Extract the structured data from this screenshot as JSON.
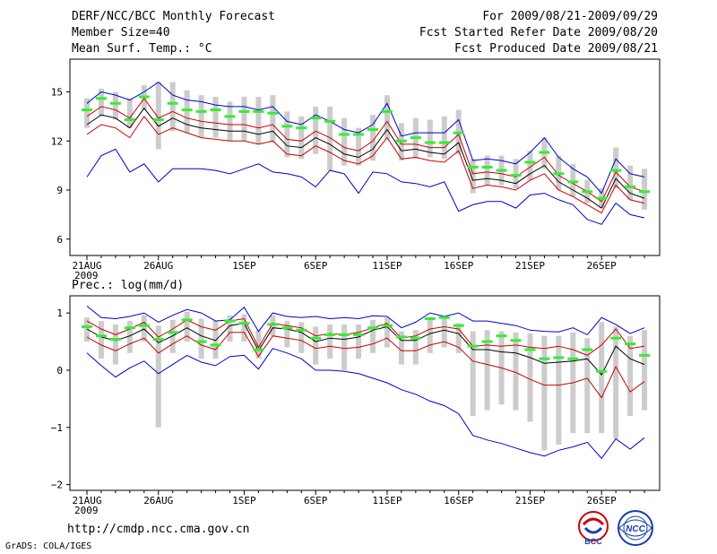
{
  "header": {
    "title": "DERF/NCC/BCC Monthly Forecast",
    "member_size": "Member Size=40",
    "variable": "Mean Surf. Temp.: °C",
    "period": "For 2009/08/21-2009/09/29",
    "started": "Fcst Started Refer Date 2009/08/20",
    "produced": "Fcst Produced Date 2009/08/21"
  },
  "footer": {
    "url": "http://cmdp.ncc.cma.gov.cn",
    "grads": "GrADS: COLA/IGES",
    "logo1": "BCC",
    "logo2": "NCC"
  },
  "colors": {
    "max_min": "#0000cc",
    "pct": "#cc0000",
    "mean": "#000000",
    "box": "#cccccc",
    "median": "#33ee33"
  },
  "chart_data": [
    {
      "type": "line",
      "title": "Mean Surf. Temp.: °C",
      "ylim": [
        5,
        17
      ],
      "yticks": [
        6,
        9,
        12,
        15
      ],
      "x_labels": [
        {
          "day": 0,
          "label": "21AUG",
          "sub": "2009"
        },
        {
          "day": 5,
          "label": "26AUG"
        },
        {
          "day": 11,
          "label": "1SEP"
        },
        {
          "day": 16,
          "label": "6SEP"
        },
        {
          "day": 21,
          "label": "11SEP"
        },
        {
          "day": 26,
          "label": "16SEP"
        },
        {
          "day": 31,
          "label": "21SEP"
        },
        {
          "day": 36,
          "label": "26SEP"
        }
      ],
      "series": [
        {
          "name": "max",
          "color": "#0000cc",
          "values": [
            14.3,
            15,
            14.8,
            14.5,
            15,
            15.6,
            14.8,
            14.5,
            14.4,
            14.2,
            14.1,
            14.1,
            13.9,
            14.1,
            13.2,
            13,
            13.6,
            13.2,
            12.7,
            12.5,
            13,
            14.3,
            12.3,
            12.5,
            12.5,
            12.5,
            13.3,
            10.8,
            10.9,
            10.8,
            10.6,
            11.3,
            12.2,
            11,
            10.3,
            9.8,
            8.8,
            10.9,
            10,
            9.8
          ]
        },
        {
          "name": "p90",
          "color": "#cc0000",
          "values": [
            13.5,
            14.1,
            13.9,
            13.4,
            14.6,
            13.4,
            13.8,
            13.4,
            13.2,
            13.1,
            13,
            13,
            12.8,
            13,
            12.1,
            12,
            12.6,
            12.2,
            11.6,
            11.4,
            12,
            13.2,
            11.8,
            11.8,
            11.6,
            11.6,
            12.4,
            10,
            10.1,
            10,
            9.8,
            10.4,
            11,
            9.9,
            9.4,
            8.9,
            8.3,
            10.1,
            9.2,
            8.9
          ]
        },
        {
          "name": "mean",
          "color": "#000000",
          "values": [
            13,
            13.6,
            13.4,
            12.8,
            14,
            12.9,
            13.4,
            13,
            12.8,
            12.7,
            12.6,
            12.6,
            12.4,
            12.6,
            11.7,
            11.6,
            12.2,
            11.8,
            11.2,
            11,
            11.5,
            12.7,
            11.4,
            11.5,
            11.3,
            11.2,
            11.9,
            9.6,
            9.7,
            9.6,
            9.4,
            10,
            10.5,
            9.5,
            9,
            8.5,
            7.9,
            9.7,
            8.8,
            8.5
          ]
        },
        {
          "name": "p10",
          "color": "#cc0000",
          "values": [
            12.4,
            13,
            12.8,
            12.2,
            13.5,
            12.4,
            12.8,
            12.5,
            12.2,
            12.1,
            12,
            12,
            11.8,
            12,
            11.2,
            11.1,
            11.7,
            11.3,
            10.8,
            10.6,
            11.1,
            12.2,
            10.9,
            11,
            10.8,
            10.7,
            11.4,
            9.1,
            9.3,
            9.2,
            9,
            9.6,
            10,
            9,
            8.6,
            8.1,
            7.6,
            9.3,
            8.4,
            8.2
          ]
        },
        {
          "name": "min",
          "color": "#0000cc",
          "values": [
            9.8,
            11.1,
            11.5,
            10.1,
            10.6,
            9.5,
            10.3,
            10.3,
            10.3,
            10.2,
            10,
            10.3,
            10.6,
            10.1,
            10,
            9.8,
            9.2,
            10.2,
            10,
            8.8,
            10.1,
            10,
            9.5,
            9.4,
            9.2,
            9.5,
            7.7,
            8.1,
            8.3,
            8.3,
            7.9,
            8.7,
            8.8,
            8.4,
            8.1,
            7.2,
            6.9,
            8.2,
            7.5,
            7.3
          ]
        }
      ],
      "boxes": {
        "high": [
          14.6,
          15.2,
          15,
          14.6,
          15.4,
          15.6,
          15.6,
          15.1,
          14.8,
          14.7,
          14.4,
          14.7,
          14.7,
          14.8,
          13.8,
          13.5,
          14.1,
          14.1,
          13.4,
          12.8,
          13.6,
          14.8,
          13.1,
          13.4,
          13.3,
          13.5,
          13.9,
          10.9,
          11.1,
          11.1,
          10.9,
          11.4,
          12.2,
          11.1,
          10.6,
          9.6,
          9.1,
          11.6,
          10.5,
          10.3
        ],
        "low": [
          12.8,
          13.5,
          13.3,
          12.8,
          13.9,
          11.5,
          12.6,
          12.5,
          12.2,
          12.2,
          12,
          12,
          11.8,
          11.9,
          11,
          10.9,
          11.2,
          10.2,
          10.5,
          10.5,
          10.8,
          12.1,
          10.8,
          10.9,
          11,
          10.9,
          11.2,
          8.8,
          9.3,
          9.3,
          9.1,
          9.6,
          10.3,
          9,
          8.6,
          8.2,
          7.9,
          9.1,
          8.4,
          7.8
        ],
        "median": [
          13.9,
          14.6,
          14.3,
          13.3,
          14.7,
          13.3,
          14.3,
          13.9,
          13.8,
          13.9,
          13.5,
          13.8,
          13.8,
          13.7,
          12.9,
          12.8,
          13.4,
          13.2,
          12.4,
          12.4,
          12.7,
          13.8,
          12,
          12.2,
          11.9,
          11.9,
          12.5,
          10.4,
          10.4,
          10.2,
          9.9,
          10.7,
          11.3,
          10,
          9.5,
          8.9,
          8.5,
          10.2,
          9.2,
          8.9
        ]
      }
    },
    {
      "type": "line",
      "title": "Prec.: log(mm/d)",
      "ylim": [
        -2.1,
        1.3
      ],
      "yticks": [
        -2,
        -1,
        0,
        1
      ],
      "x_labels": [
        {
          "day": 0,
          "label": "21AUG",
          "sub": "2009"
        },
        {
          "day": 5,
          "label": "26AUG"
        },
        {
          "day": 11,
          "label": "1SEP"
        },
        {
          "day": 16,
          "label": "6SEP"
        },
        {
          "day": 21,
          "label": "11SEP"
        },
        {
          "day": 26,
          "label": "16SEP"
        },
        {
          "day": 31,
          "label": "21SEP"
        },
        {
          "day": 36,
          "label": "26SEP"
        }
      ],
      "series": [
        {
          "name": "max",
          "color": "#0000cc",
          "values": [
            1.12,
            0.92,
            0.9,
            0.94,
            1.0,
            0.84,
            0.96,
            1.06,
            1.0,
            0.86,
            0.88,
            1.1,
            0.68,
            1.0,
            0.94,
            0.92,
            0.94,
            0.9,
            0.92,
            0.9,
            0.95,
            0.94,
            0.74,
            0.84,
            1.0,
            0.94,
            1.0,
            0.86,
            0.86,
            0.82,
            0.78,
            0.7,
            0.68,
            0.67,
            0.74,
            0.62,
            0.92,
            0.8,
            0.64,
            0.74
          ]
        },
        {
          "name": "p90",
          "color": "#cc0000",
          "values": [
            0.86,
            0.72,
            0.62,
            0.72,
            0.84,
            0.58,
            0.72,
            0.88,
            0.76,
            0.7,
            0.86,
            0.9,
            0.4,
            0.82,
            0.78,
            0.74,
            0.6,
            0.64,
            0.62,
            0.66,
            0.74,
            0.82,
            0.56,
            0.6,
            0.72,
            0.76,
            0.72,
            0.42,
            0.44,
            0.42,
            0.44,
            0.4,
            0.38,
            0.42,
            0.36,
            0.26,
            0.44,
            0.72,
            0.38,
            0.42
          ]
        },
        {
          "name": "mean",
          "color": "#000000",
          "values": [
            0.72,
            0.58,
            0.52,
            0.6,
            0.72,
            0.48,
            0.6,
            0.74,
            0.6,
            0.52,
            0.78,
            0.82,
            0.34,
            0.74,
            0.72,
            0.66,
            0.5,
            0.56,
            0.54,
            0.58,
            0.7,
            0.76,
            0.52,
            0.52,
            0.64,
            0.7,
            0.64,
            0.36,
            0.36,
            0.32,
            0.3,
            0.22,
            0.12,
            0.14,
            0.16,
            0.2,
            -0.08,
            0.42,
            0.2,
            0.1
          ]
        },
        {
          "name": "p10",
          "color": "#cc0000",
          "values": [
            0.58,
            0.44,
            0.34,
            0.46,
            0.56,
            0.3,
            0.46,
            0.6,
            0.44,
            0.36,
            0.66,
            0.66,
            0.24,
            0.6,
            0.56,
            0.52,
            0.38,
            0.42,
            0.38,
            0.4,
            0.46,
            0.56,
            0.34,
            0.34,
            0.44,
            0.5,
            0.4,
            0.16,
            0.1,
            0.04,
            -0.04,
            -0.16,
            -0.26,
            -0.26,
            -0.22,
            -0.14,
            -0.48,
            0.06,
            -0.38,
            -0.2
          ]
        },
        {
          "name": "min",
          "color": "#0000cc",
          "values": [
            0.3,
            0.08,
            -0.12,
            0.04,
            0.16,
            -0.06,
            0.1,
            0.26,
            0.14,
            0.08,
            0.24,
            0.26,
            0.02,
            0.38,
            0.3,
            0.2,
            0.0,
            0.0,
            -0.02,
            -0.06,
            -0.14,
            -0.22,
            -0.34,
            -0.42,
            -0.54,
            -0.62,
            -0.76,
            -1.14,
            -1.22,
            -1.28,
            -1.36,
            -1.44,
            -1.5,
            -1.4,
            -1.34,
            -1.26,
            -1.54,
            -1.2,
            -1.38,
            -1.18
          ]
        }
      ],
      "boxes": {
        "high": [
          0.92,
          0.86,
          0.8,
          0.86,
          0.96,
          0.78,
          0.88,
          1.02,
          0.9,
          0.86,
          0.96,
          0.98,
          0.7,
          0.96,
          0.86,
          0.84,
          0.76,
          0.8,
          0.8,
          0.8,
          0.88,
          0.92,
          0.68,
          0.7,
          0.9,
          0.92,
          0.82,
          0.68,
          0.7,
          0.68,
          0.66,
          0.64,
          0.6,
          0.6,
          0.66,
          0.56,
          0.84,
          0.76,
          0.6,
          0.7
        ],
        "low": [
          0.5,
          0.2,
          0.1,
          0.3,
          0.5,
          -1.0,
          0.3,
          0.5,
          0.2,
          0.2,
          0.5,
          0.5,
          0.2,
          0.6,
          0.4,
          0.3,
          0.1,
          0.2,
          0.0,
          0.2,
          0.3,
          0.4,
          0.1,
          0.1,
          0.3,
          0.4,
          0.3,
          -0.8,
          -0.7,
          -0.6,
          -0.7,
          -0.9,
          -1.4,
          -1.3,
          -1.1,
          -1.1,
          -1.1,
          -1.2,
          -0.8,
          -0.7
        ],
        "median": [
          0.76,
          0.6,
          0.54,
          0.74,
          0.78,
          0.54,
          0.66,
          0.88,
          0.5,
          0.44,
          0.86,
          0.82,
          0.36,
          0.8,
          0.74,
          0.7,
          0.56,
          0.62,
          0.62,
          0.62,
          0.74,
          0.78,
          0.58,
          0.56,
          0.9,
          0.92,
          0.78,
          0.42,
          0.5,
          0.6,
          0.52,
          0.36,
          0.2,
          0.22,
          0.2,
          0.36,
          -0.02,
          0.56,
          0.46,
          0.26
        ]
      }
    }
  ]
}
